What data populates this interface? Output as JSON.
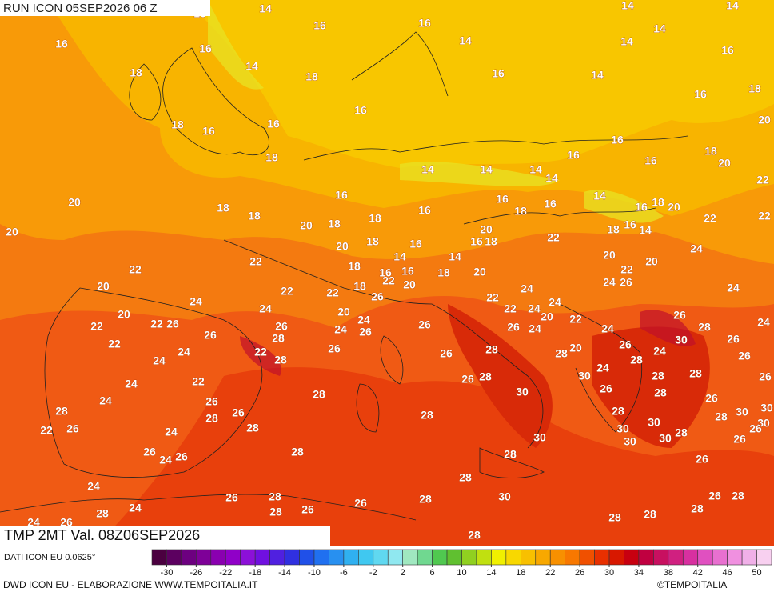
{
  "header": {
    "run": "RUN ICON 05SEP2026 06 Z"
  },
  "map": {
    "labels": [
      14,
      16,
      16,
      16,
      16,
      14,
      16,
      14,
      14,
      14,
      14,
      14,
      16,
      18,
      18,
      16,
      14,
      16,
      18,
      16,
      16,
      18,
      16,
      20,
      16,
      16,
      18,
      18,
      16,
      20,
      14,
      14,
      14,
      14,
      22,
      16,
      14,
      20,
      18,
      18,
      16,
      16,
      16,
      16,
      18,
      20,
      22,
      22,
      20,
      20,
      18,
      18,
      18,
      18,
      16,
      14,
      20,
      22,
      20,
      18,
      16,
      16,
      18,
      24,
      22,
      18,
      14,
      14,
      20,
      20,
      22,
      16,
      16,
      18,
      20,
      22,
      22,
      20,
      18,
      24,
      26,
      20,
      22,
      22,
      24,
      24,
      24,
      26,
      22,
      24,
      24,
      22,
      20,
      24,
      20,
      26,
      22,
      22,
      26,
      26,
      24,
      20,
      22,
      24,
      28,
      24,
      26,
      26,
      26,
      24,
      24,
      26,
      28,
      26,
      30,
      22,
      24,
      22,
      26,
      28,
      20,
      26,
      24,
      28,
      26,
      24,
      28,
      26,
      28,
      24,
      30,
      26,
      28,
      28,
      22,
      28,
      24,
      26,
      28,
      30,
      26,
      28,
      26,
      24,
      26,
      30,
      28,
      26,
      28,
      28,
      30,
      30,
      28,
      22,
      26,
      28,
      28,
      30,
      24,
      30,
      28,
      26,
      26,
      30,
      30,
      30,
      26,
      24,
      26,
      28,
      28,
      26,
      28,
      24,
      26,
      28,
      28,
      26,
      30,
      26,
      28,
      24,
      28,
      28,
      26,
      28,
      28,
      28,
      24,
      26,
      28
    ]
  },
  "footer": {
    "title": "TMP 2MT Val. 08Z06SEP2026",
    "source": "DATI ICON EU 0.0625°",
    "credit": "DWD ICON EU - ELABORAZIONE WWW.TEMPOITALIA.IT",
    "brand": "©TEMPOITALIA"
  },
  "colorbar": {
    "lim": [
      -32,
      52
    ],
    "step": 2,
    "ticks": [
      -30,
      -26,
      -22,
      -18,
      -14,
      -10,
      -6,
      -2,
      2,
      6,
      10,
      14,
      18,
      22,
      26,
      30,
      34,
      38,
      42,
      46,
      50
    ],
    "colors": [
      "#4b0040",
      "#5c0060",
      "#6d0080",
      "#7e0098",
      "#8a00b0",
      "#9000c8",
      "#8c10d8",
      "#7010e0",
      "#5020e0",
      "#3030e0",
      "#2050e8",
      "#2070f0",
      "#2890f0",
      "#30b0f0",
      "#40c8f0",
      "#60d8f0",
      "#90e8f0",
      "#a0e8c0",
      "#70d890",
      "#50c850",
      "#60c030",
      "#90d020",
      "#c0e010",
      "#f0f000",
      "#f8d800",
      "#f8c000",
      "#f8a800",
      "#f89000",
      "#f87800",
      "#f05000",
      "#e83000",
      "#d81800",
      "#c80010",
      "#c00040",
      "#c81060",
      "#d02080",
      "#d830a0",
      "#e050c0",
      "#e870d0",
      "#f090e0",
      "#f0b0e8",
      "#f8d0f0"
    ]
  }
}
